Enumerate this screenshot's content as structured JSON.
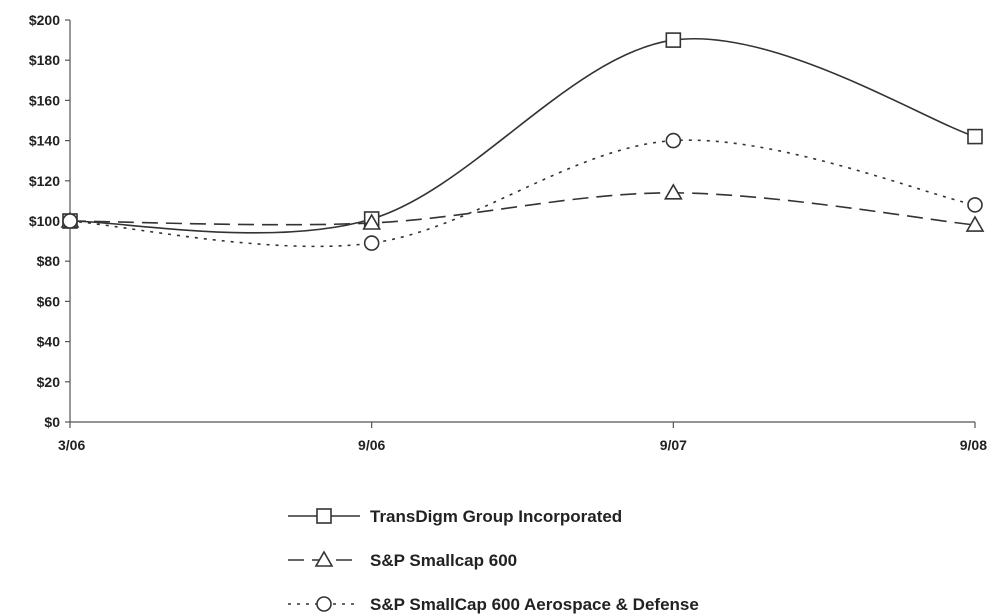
{
  "chart_data": {
    "type": "line",
    "title": "",
    "xlabel": "",
    "ylabel": "",
    "categories": [
      "3/06",
      "9/06",
      "9/07",
      "9/08"
    ],
    "ylim": [
      0,
      200
    ],
    "yticks": [
      0,
      20,
      40,
      60,
      80,
      100,
      120,
      140,
      160,
      180,
      200
    ],
    "ytick_labels": [
      "$0",
      "$20",
      "$40",
      "$60",
      "$80",
      "$100",
      "$120",
      "$140",
      "$160",
      "$180",
      "$200"
    ],
    "grid": false,
    "smooth": true,
    "legend_position": "bottom",
    "series": [
      {
        "name": "TransDigm Group Incorporated",
        "values": [
          100,
          101,
          190,
          142
        ],
        "line_style": "solid",
        "marker": "square",
        "color": "#333333"
      },
      {
        "name": "S&P Smallcap 600",
        "values": [
          100,
          99,
          114,
          98
        ],
        "line_style": "dashed",
        "marker": "triangle",
        "color": "#333333"
      },
      {
        "name": "S&P SmallCap 600 Aerospace & Defense",
        "values": [
          100,
          89,
          140,
          108
        ],
        "line_style": "dotted",
        "marker": "circle",
        "color": "#333333"
      }
    ]
  }
}
